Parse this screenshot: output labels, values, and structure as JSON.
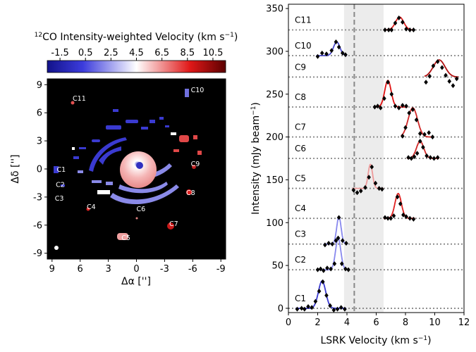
{
  "colorbar": {
    "title_iso": "12",
    "title_text": "CO Intensity-weighted Velocity (km s",
    "title_exp": "−1",
    "title_close": ")",
    "ticks": [
      "-1.5",
      "0.5",
      "2.5",
      "4.5",
      "6.5",
      "8.5",
      "10.5"
    ],
    "range": [
      -2.5,
      11.5
    ],
    "colors": {
      "low": "#1a1aa0",
      "mid": "#ffffff",
      "high": "#7a0000"
    }
  },
  "map": {
    "xlabel": "Δα ['']",
    "ylabel": "Δδ ['']",
    "xticks": [
      "9",
      "6",
      "3",
      "0",
      "-3",
      "-6",
      "-9"
    ],
    "yticks": [
      "9",
      "6",
      "3",
      "0",
      "-3",
      "-6",
      "-9"
    ],
    "background": "#000000",
    "clumps": [
      {
        "name": "C11",
        "ra": 6.8,
        "dec": 7.3
      },
      {
        "name": "C10",
        "ra": -5.8,
        "dec": 8.2
      },
      {
        "name": "C9",
        "ra": -5.8,
        "dec": 0.3
      },
      {
        "name": "C8",
        "ra": -5.3,
        "dec": -2.8
      },
      {
        "name": "C7",
        "ra": -3.5,
        "dec": -6.1
      },
      {
        "name": "C6",
        "ra": 0.0,
        "dec": -4.5
      },
      {
        "name": "C5",
        "ra": 1.6,
        "dec": -7.6
      },
      {
        "name": "C4",
        "ra": 5.3,
        "dec": -4.3
      },
      {
        "name": "C3",
        "ra": 8.7,
        "dec": -3.4
      },
      {
        "name": "C2",
        "ra": 8.6,
        "dec": -1.9
      },
      {
        "name": "C1",
        "ra": 8.5,
        "dec": -0.3
      }
    ]
  },
  "chart_data": {
    "type": "line",
    "xlabel": "LSRK Velocity (km s",
    "xlabel_exp": "−1",
    "xlabel_close": ")",
    "ylabel": "Intensity (mJy beam",
    "ylabel_exp": "−1",
    "ylabel_close": ")",
    "xlim": [
      0,
      12
    ],
    "ylim": [
      -5,
      355
    ],
    "xticks": [
      0,
      2,
      4,
      6,
      8,
      10,
      12
    ],
    "yticks": [
      0,
      50,
      100,
      150,
      200,
      250,
      300,
      350
    ],
    "dashed_line_x": 4.5,
    "shaded_band_x": [
      3.8,
      6.5
    ],
    "series": [
      {
        "name": "C1",
        "baseline": 0,
        "color": "#3a3ad0",
        "amp": 32,
        "center": 2.3,
        "sigma": 0.25,
        "points": [
          [
            0.6,
            -1
          ],
          [
            0.9,
            0
          ],
          [
            1.1,
            -1
          ],
          [
            1.35,
            2
          ],
          [
            1.6,
            1
          ],
          [
            1.85,
            8
          ],
          [
            2.1,
            20
          ],
          [
            2.35,
            31
          ],
          [
            2.6,
            15
          ],
          [
            2.85,
            3
          ],
          [
            3.1,
            -2
          ],
          [
            3.35,
            -1
          ],
          [
            3.6,
            1
          ],
          [
            3.85,
            -1
          ]
        ]
      },
      {
        "name": "C2",
        "baseline": 45,
        "color": "#8888ee",
        "amp": 37,
        "center": 3.4,
        "sigma": 0.18,
        "points": [
          [
            2.0,
            45
          ],
          [
            2.2,
            46
          ],
          [
            2.4,
            44
          ],
          [
            2.65,
            47
          ],
          [
            2.9,
            46
          ],
          [
            3.15,
            52
          ],
          [
            3.4,
            82
          ],
          [
            3.65,
            52
          ],
          [
            3.9,
            46
          ],
          [
            4.1,
            45
          ]
        ]
      },
      {
        "name": "C3",
        "baseline": 75,
        "color": "#8888ee",
        "amp": 32,
        "center": 3.45,
        "sigma": 0.15,
        "points": [
          [
            2.5,
            74
          ],
          [
            2.75,
            76
          ],
          [
            3.0,
            75
          ],
          [
            3.25,
            79
          ],
          [
            3.45,
            106
          ],
          [
            3.7,
            79
          ],
          [
            3.95,
            76
          ]
        ]
      },
      {
        "name": "C4",
        "baseline": 105,
        "color": "#e02020",
        "amp": 29,
        "center": 7.5,
        "sigma": 0.22,
        "points": [
          [
            6.6,
            106
          ],
          [
            6.8,
            105
          ],
          [
            7.0,
            105
          ],
          [
            7.2,
            108
          ],
          [
            7.45,
            130
          ],
          [
            7.65,
            122
          ],
          [
            7.85,
            109
          ],
          [
            8.05,
            107
          ],
          [
            8.3,
            105
          ],
          [
            8.55,
            104
          ]
        ]
      },
      {
        "name": "C5",
        "baseline": 140,
        "color": "#ee9a9a",
        "amp": 28,
        "center": 5.6,
        "sigma": 0.15,
        "points": [
          [
            4.45,
            138
          ],
          [
            4.7,
            135
          ],
          [
            4.95,
            137
          ],
          [
            5.25,
            141
          ],
          [
            5.5,
            153
          ],
          [
            5.7,
            165
          ],
          [
            5.95,
            146
          ],
          [
            6.2,
            140
          ],
          [
            6.4,
            139
          ]
        ]
      },
      {
        "name": "C6",
        "baseline": 175,
        "color": "#d02828",
        "amp": 20,
        "center": 9.0,
        "sigma": 0.25,
        "points": [
          [
            8.2,
            176
          ],
          [
            8.4,
            175
          ],
          [
            8.6,
            177
          ],
          [
            8.8,
            181
          ],
          [
            9.0,
            195
          ],
          [
            9.2,
            188
          ],
          [
            9.45,
            178
          ],
          [
            9.7,
            176
          ],
          [
            9.95,
            175
          ],
          [
            10.2,
            176
          ]
        ]
      },
      {
        "name": "C7",
        "baseline": 200,
        "color": "#d02828",
        "amp": 34,
        "center": 8.5,
        "sigma": 0.32,
        "points": [
          [
            7.8,
            201
          ],
          [
            8.0,
            211
          ],
          [
            8.25,
            228
          ],
          [
            8.5,
            232
          ],
          [
            8.75,
            220
          ],
          [
            9.0,
            204
          ],
          [
            9.3,
            203
          ],
          [
            9.6,
            205
          ],
          [
            9.85,
            200
          ]
        ]
      },
      {
        "name": "C8",
        "baseline": 235,
        "color": "#e01010",
        "amp": 31,
        "center": 6.8,
        "sigma": 0.22,
        "points": [
          [
            5.9,
            235
          ],
          [
            6.1,
            236
          ],
          [
            6.3,
            234
          ],
          [
            6.55,
            245
          ],
          [
            6.8,
            264
          ],
          [
            7.05,
            250
          ],
          [
            7.3,
            236
          ],
          [
            7.55,
            234
          ],
          [
            7.8,
            237
          ],
          [
            8.05,
            236
          ]
        ]
      },
      {
        "name": "C9",
        "baseline": 270,
        "color": "#b01010",
        "amp": 20,
        "center": 10.3,
        "sigma": 0.4,
        "points": [
          [
            9.4,
            264
          ],
          [
            9.65,
            271
          ],
          [
            9.9,
            283
          ],
          [
            10.2,
            288
          ],
          [
            10.5,
            281
          ],
          [
            10.75,
            272
          ],
          [
            11.0,
            265
          ],
          [
            11.25,
            260
          ],
          [
            11.5,
            268
          ]
        ]
      },
      {
        "name": "C10",
        "baseline": 295,
        "color": "#4a4acc",
        "amp": 16,
        "center": 3.3,
        "sigma": 0.22,
        "points": [
          [
            2.0,
            294
          ],
          [
            2.3,
            298
          ],
          [
            2.6,
            297
          ],
          [
            2.95,
            301
          ],
          [
            3.25,
            311
          ],
          [
            3.45,
            305
          ],
          [
            3.7,
            298
          ],
          [
            3.9,
            296
          ]
        ]
      },
      {
        "name": "C11",
        "baseline": 325,
        "color": "#e02020",
        "amp": 15,
        "center": 7.6,
        "sigma": 0.28,
        "points": [
          [
            6.6,
            325
          ],
          [
            6.85,
            325
          ],
          [
            7.05,
            325
          ],
          [
            7.3,
            333
          ],
          [
            7.55,
            339
          ],
          [
            7.8,
            334
          ],
          [
            8.05,
            326
          ],
          [
            8.3,
            325
          ],
          [
            8.55,
            325
          ]
        ]
      }
    ]
  }
}
